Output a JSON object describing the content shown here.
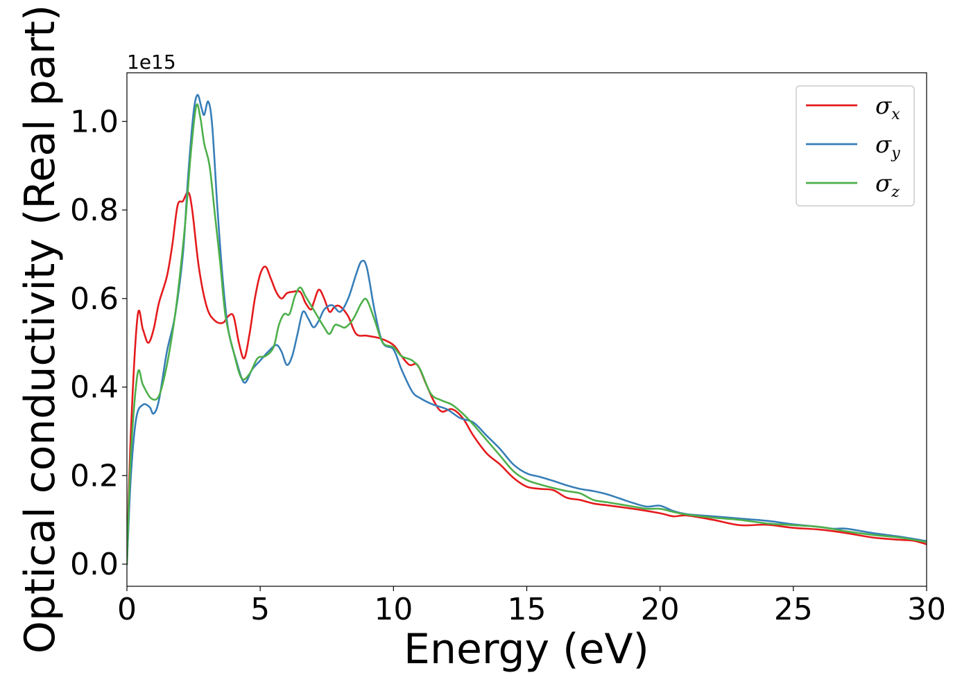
{
  "chart_data": {
    "type": "line",
    "title": "",
    "xlabel": "Energy (eV)",
    "ylabel": "Optical conductivity (Real part)",
    "y_offset_label": "1e15",
    "xlim": [
      0,
      30
    ],
    "ylim": [
      -0.05,
      1.11
    ],
    "x_ticks": [
      0,
      5,
      10,
      15,
      20,
      25,
      30
    ],
    "x_tick_labels": [
      "0",
      "5",
      "10",
      "15",
      "20",
      "25",
      "30"
    ],
    "y_ticks": [
      0.0,
      0.2,
      0.4,
      0.6,
      0.8,
      1.0
    ],
    "y_tick_labels": [
      "0.0",
      "0.2",
      "0.4",
      "0.6",
      "0.8",
      "1.0"
    ],
    "grid": false,
    "legend_position": "top-right",
    "series": [
      {
        "name": "σx",
        "symbol": "σ",
        "subscript": "x",
        "color": "#e41a1c",
        "points": [
          [
            0,
            0
          ],
          [
            0.15,
            0.3
          ],
          [
            0.4,
            0.56
          ],
          [
            0.6,
            0.53
          ],
          [
            0.8,
            0.5
          ],
          [
            1.0,
            0.53
          ],
          [
            1.2,
            0.59
          ],
          [
            1.5,
            0.65
          ],
          [
            1.7,
            0.72
          ],
          [
            1.9,
            0.81
          ],
          [
            2.1,
            0.82
          ],
          [
            2.3,
            0.84
          ],
          [
            2.45,
            0.8
          ],
          [
            2.7,
            0.67
          ],
          [
            3.0,
            0.58
          ],
          [
            3.3,
            0.55
          ],
          [
            3.6,
            0.545
          ],
          [
            3.8,
            0.56
          ],
          [
            4.0,
            0.56
          ],
          [
            4.2,
            0.5
          ],
          [
            4.4,
            0.465
          ],
          [
            4.6,
            0.52
          ],
          [
            4.8,
            0.6
          ],
          [
            5.0,
            0.655
          ],
          [
            5.2,
            0.672
          ],
          [
            5.4,
            0.645
          ],
          [
            5.6,
            0.615
          ],
          [
            5.8,
            0.6
          ],
          [
            6.0,
            0.612
          ],
          [
            6.2,
            0.615
          ],
          [
            6.5,
            0.615
          ],
          [
            6.7,
            0.59
          ],
          [
            6.9,
            0.575
          ],
          [
            7.0,
            0.59
          ],
          [
            7.2,
            0.62
          ],
          [
            7.4,
            0.6
          ],
          [
            7.6,
            0.57
          ],
          [
            7.8,
            0.582
          ],
          [
            8.0,
            0.582
          ],
          [
            8.3,
            0.56
          ],
          [
            8.6,
            0.52
          ],
          [
            9.0,
            0.516
          ],
          [
            9.5,
            0.51
          ],
          [
            10.0,
            0.495
          ],
          [
            10.3,
            0.47
          ],
          [
            10.6,
            0.45
          ],
          [
            10.9,
            0.45
          ],
          [
            11.2,
            0.41
          ],
          [
            11.5,
            0.37
          ],
          [
            11.8,
            0.345
          ],
          [
            12.2,
            0.35
          ],
          [
            12.6,
            0.33
          ],
          [
            13.0,
            0.29
          ],
          [
            13.5,
            0.25
          ],
          [
            14.0,
            0.225
          ],
          [
            14.5,
            0.195
          ],
          [
            15.0,
            0.175
          ],
          [
            15.5,
            0.17
          ],
          [
            16.0,
            0.167
          ],
          [
            16.5,
            0.15
          ],
          [
            17.0,
            0.145
          ],
          [
            17.5,
            0.137
          ],
          [
            18.0,
            0.133
          ],
          [
            19.0,
            0.125
          ],
          [
            20.0,
            0.115
          ],
          [
            20.5,
            0.108
          ],
          [
            21.0,
            0.11
          ],
          [
            22.0,
            0.1
          ],
          [
            23.0,
            0.088
          ],
          [
            24.0,
            0.089
          ],
          [
            25.0,
            0.082
          ],
          [
            26.0,
            0.078
          ],
          [
            27.0,
            0.07
          ],
          [
            28.0,
            0.06
          ],
          [
            29.0,
            0.055
          ],
          [
            29.5,
            0.053
          ],
          [
            30.0,
            0.045
          ]
        ]
      },
      {
        "name": "σy",
        "symbol": "σ",
        "subscript": "y",
        "color": "#377eb8",
        "points": [
          [
            0,
            0
          ],
          [
            0.15,
            0.2
          ],
          [
            0.35,
            0.33
          ],
          [
            0.6,
            0.36
          ],
          [
            0.85,
            0.355
          ],
          [
            1.0,
            0.34
          ],
          [
            1.2,
            0.37
          ],
          [
            1.5,
            0.48
          ],
          [
            1.8,
            0.56
          ],
          [
            2.1,
            0.7
          ],
          [
            2.3,
            0.88
          ],
          [
            2.5,
            1.02
          ],
          [
            2.65,
            1.06
          ],
          [
            2.8,
            1.03
          ],
          [
            2.9,
            1.015
          ],
          [
            3.05,
            1.045
          ],
          [
            3.2,
            0.99
          ],
          [
            3.4,
            0.8
          ],
          [
            3.6,
            0.64
          ],
          [
            3.8,
            0.53
          ],
          [
            4.1,
            0.46
          ],
          [
            4.4,
            0.41
          ],
          [
            4.7,
            0.44
          ],
          [
            5.0,
            0.46
          ],
          [
            5.3,
            0.48
          ],
          [
            5.6,
            0.495
          ],
          [
            5.8,
            0.48
          ],
          [
            6.0,
            0.45
          ],
          [
            6.2,
            0.47
          ],
          [
            6.4,
            0.52
          ],
          [
            6.6,
            0.57
          ],
          [
            6.8,
            0.555
          ],
          [
            7.0,
            0.535
          ],
          [
            7.2,
            0.55
          ],
          [
            7.4,
            0.575
          ],
          [
            7.7,
            0.585
          ],
          [
            8.0,
            0.57
          ],
          [
            8.3,
            0.6
          ],
          [
            8.6,
            0.655
          ],
          [
            8.8,
            0.684
          ],
          [
            9.0,
            0.67
          ],
          [
            9.3,
            0.57
          ],
          [
            9.6,
            0.5
          ],
          [
            10.0,
            0.485
          ],
          [
            10.3,
            0.44
          ],
          [
            10.7,
            0.39
          ],
          [
            11.0,
            0.375
          ],
          [
            11.5,
            0.36
          ],
          [
            12.0,
            0.35
          ],
          [
            12.5,
            0.33
          ],
          [
            13.0,
            0.32
          ],
          [
            13.5,
            0.29
          ],
          [
            14.0,
            0.26
          ],
          [
            14.5,
            0.225
          ],
          [
            15.0,
            0.205
          ],
          [
            15.5,
            0.197
          ],
          [
            16.0,
            0.188
          ],
          [
            16.5,
            0.178
          ],
          [
            17.0,
            0.17
          ],
          [
            17.5,
            0.165
          ],
          [
            18.0,
            0.158
          ],
          [
            18.5,
            0.148
          ],
          [
            19.0,
            0.138
          ],
          [
            19.5,
            0.13
          ],
          [
            20.0,
            0.132
          ],
          [
            20.5,
            0.12
          ],
          [
            21.0,
            0.113
          ],
          [
            22.0,
            0.108
          ],
          [
            23.0,
            0.103
          ],
          [
            24.0,
            0.098
          ],
          [
            25.0,
            0.09
          ],
          [
            26.0,
            0.084
          ],
          [
            26.5,
            0.08
          ],
          [
            27.0,
            0.08
          ],
          [
            28.0,
            0.07
          ],
          [
            29.0,
            0.062
          ],
          [
            30.0,
            0.052
          ]
        ]
      },
      {
        "name": "σz",
        "symbol": "σ",
        "subscript": "z",
        "color": "#4daf4a",
        "points": [
          [
            0,
            0
          ],
          [
            0.15,
            0.25
          ],
          [
            0.4,
            0.43
          ],
          [
            0.6,
            0.405
          ],
          [
            0.9,
            0.375
          ],
          [
            1.2,
            0.38
          ],
          [
            1.5,
            0.45
          ],
          [
            1.8,
            0.56
          ],
          [
            2.0,
            0.66
          ],
          [
            2.2,
            0.78
          ],
          [
            2.4,
            0.93
          ],
          [
            2.6,
            1.035
          ],
          [
            2.75,
            1.01
          ],
          [
            2.9,
            0.95
          ],
          [
            3.1,
            0.9
          ],
          [
            3.3,
            0.79
          ],
          [
            3.5,
            0.68
          ],
          [
            3.7,
            0.56
          ],
          [
            4.0,
            0.48
          ],
          [
            4.3,
            0.42
          ],
          [
            4.6,
            0.43
          ],
          [
            4.9,
            0.465
          ],
          [
            5.2,
            0.47
          ],
          [
            5.5,
            0.49
          ],
          [
            5.7,
            0.54
          ],
          [
            5.9,
            0.565
          ],
          [
            6.1,
            0.565
          ],
          [
            6.3,
            0.605
          ],
          [
            6.5,
            0.625
          ],
          [
            6.7,
            0.605
          ],
          [
            6.9,
            0.585
          ],
          [
            7.1,
            0.565
          ],
          [
            7.4,
            0.535
          ],
          [
            7.6,
            0.52
          ],
          [
            7.8,
            0.54
          ],
          [
            8.0,
            0.538
          ],
          [
            8.2,
            0.535
          ],
          [
            8.5,
            0.555
          ],
          [
            8.8,
            0.59
          ],
          [
            9.0,
            0.597
          ],
          [
            9.3,
            0.55
          ],
          [
            9.6,
            0.5
          ],
          [
            10.0,
            0.49
          ],
          [
            10.3,
            0.47
          ],
          [
            10.7,
            0.46
          ],
          [
            11.0,
            0.44
          ],
          [
            11.4,
            0.385
          ],
          [
            11.8,
            0.37
          ],
          [
            12.2,
            0.36
          ],
          [
            12.6,
            0.34
          ],
          [
            13.0,
            0.315
          ],
          [
            13.5,
            0.28
          ],
          [
            14.0,
            0.245
          ],
          [
            14.5,
            0.21
          ],
          [
            15.0,
            0.19
          ],
          [
            15.5,
            0.18
          ],
          [
            16.0,
            0.172
          ],
          [
            16.5,
            0.165
          ],
          [
            17.0,
            0.16
          ],
          [
            17.5,
            0.145
          ],
          [
            18.0,
            0.14
          ],
          [
            18.5,
            0.135
          ],
          [
            19.0,
            0.13
          ],
          [
            19.5,
            0.125
          ],
          [
            20.0,
            0.125
          ],
          [
            20.5,
            0.118
          ],
          [
            21.0,
            0.112
          ],
          [
            22.0,
            0.105
          ],
          [
            23.0,
            0.1
          ],
          [
            24.0,
            0.092
          ],
          [
            25.0,
            0.088
          ],
          [
            26.0,
            0.084
          ],
          [
            27.0,
            0.074
          ],
          [
            28.0,
            0.066
          ],
          [
            29.0,
            0.06
          ],
          [
            30.0,
            0.05
          ]
        ]
      }
    ]
  }
}
